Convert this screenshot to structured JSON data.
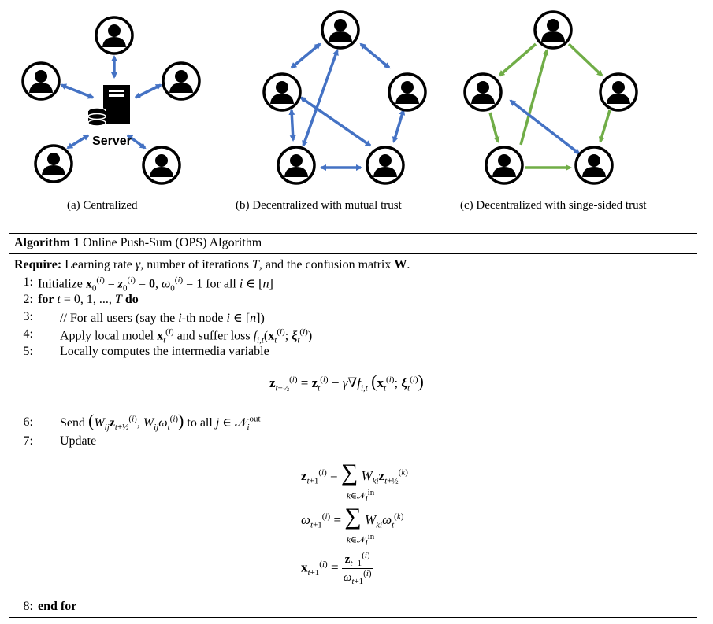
{
  "figure": {
    "server_label": "Server",
    "captions": {
      "a": "(a) Centralized",
      "b": "(b) Decentralized with mutual trust",
      "c": "(c) Decentralized with singe-sided trust"
    },
    "colors": {
      "blue_arrow": "#4472c4",
      "green_arrow": "#70ad47",
      "node": "#000000"
    },
    "icons": [
      "user-avatar-icon",
      "server-icon"
    ]
  },
  "algorithm": {
    "title_bold": "Algorithm 1",
    "title_rest": "Online Push-Sum (OPS) Algorithm",
    "require_label": "Require:",
    "require_text": "Learning rate γ, number of iterations T, and the confusion matrix W.",
    "lines": [
      {
        "num": "1:",
        "text": "Initialize x₀⁽ⁱ⁾ = z₀⁽ⁱ⁾ = 0, ω₀⁽ⁱ⁾ = 1 for all i ∈ [n]"
      },
      {
        "num": "2:",
        "text": "for t = 0, 1, ..., T do"
      },
      {
        "num": "3:",
        "text": "// For all users (say the i-th node i ∈ [n])"
      },
      {
        "num": "4:",
        "text": "Apply local model xₜ⁽ⁱ⁾ and suffer loss f_{i,t}(xₜ⁽ⁱ⁾; ξₜ⁽ⁱ⁾)"
      },
      {
        "num": "5:",
        "text": "Locally computes the intermedia variable"
      },
      {
        "num": "6:",
        "text": "Send (W_ij z_{t+1/2}⁽ⁱ⁾, W_ij ωₜ⁽ⁱ⁾) to all j ∈ N_i^out"
      },
      {
        "num": "7:",
        "text": "Update"
      },
      {
        "num": "8:",
        "text": "end for"
      }
    ],
    "equations": {
      "intermediate": "z_{t+1/2}^{(i)} = z_t^{(i)} − γ∇f_{i,t}(x_t^{(i)}; ξ_t^{(i)})",
      "update_z": "z_{t+1}^{(i)} = Σ_{k∈N_i^in} W_ki z_{t+1/2}^{(k)}",
      "update_omega": "ω_{t+1}^{(i)} = Σ_{k∈N_i^in} W_ki ω_t^{(k)}",
      "update_x": "x_{t+1}^{(i)} = z_{t+1}^{(i)} / ω_{t+1}^{(i)}"
    }
  }
}
